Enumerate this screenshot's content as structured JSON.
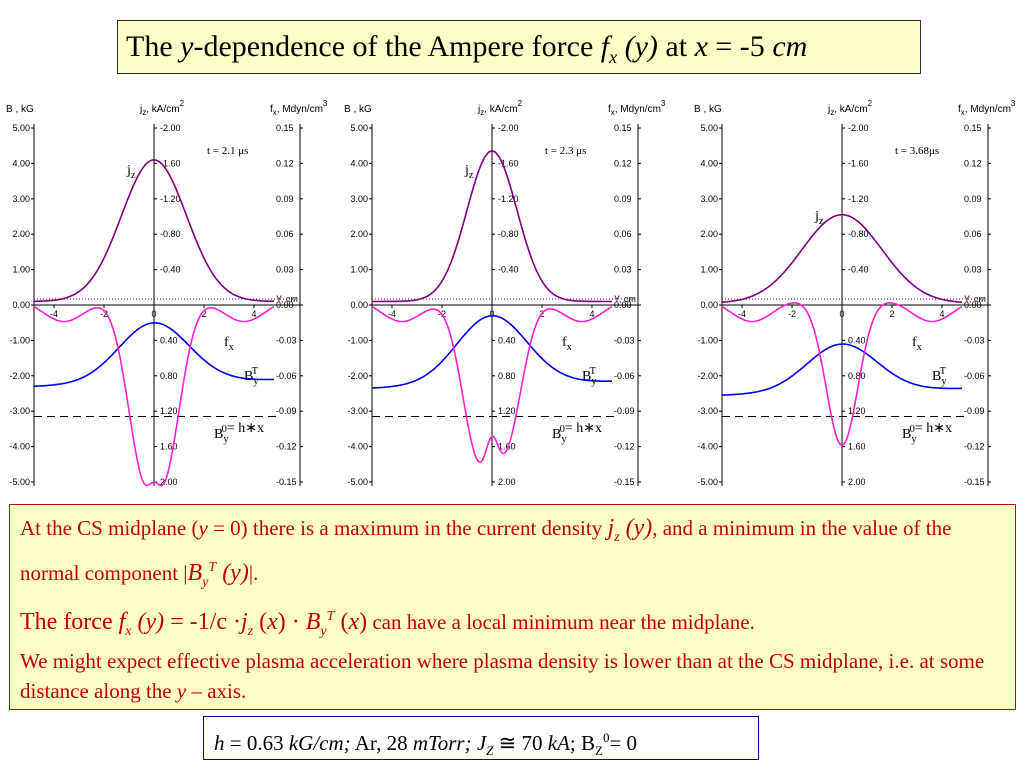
{
  "title": {
    "t1": "The ",
    "t2": "y",
    "t3": "-dependence of the Ampere force ",
    "t4": "f",
    "t5": "x",
    "t6": " (y)",
    "t7": " at ",
    "t8": "x",
    "t9": " = -5 ",
    "t10": "cm"
  },
  "panel_headers": {
    "b_axis": "B , kG",
    "j_axis_main": "j",
    "j_axis_sub": "z",
    "j_axis_unit": ", kA/cm",
    "j_axis_sup": "2",
    "f_axis_main": "f",
    "f_axis_sub": "x",
    "f_axis_unit": ", Mdyn/cm",
    "f_axis_sup": "3",
    "y_axis": "Y, cm"
  },
  "curve_labels": {
    "jz": "j",
    "jz_sub": "z",
    "fx": "f",
    "fx_sub": "x",
    "by": "B",
    "by_sub": "y",
    "by_sup": "T",
    "by0": "B",
    "by0_sub": "y",
    "by0_sup": "0",
    "by0_eq": "= h∗x"
  },
  "panels": [
    {
      "time": "t = 2.1 μs"
    },
    {
      "time": "t = 2.3 μs"
    },
    {
      "time": "t = 3.68μs"
    }
  ],
  "chart_data": {
    "type": "line",
    "left_axis": {
      "label": "B , kG",
      "ticks": [
        "5.00",
        "4.00",
        "3.00",
        "2.00",
        "1.00",
        "0.00",
        "-1.00",
        "-2.00",
        "-3.00",
        "-4.00",
        "-5.00"
      ]
    },
    "mid_axis": {
      "label": "jz, kA/cm2",
      "ticks": [
        "2.00",
        "1.60",
        "1.20",
        "0.80",
        "0.40",
        "0.40",
        "0.80",
        "1.20",
        "1.60",
        "2.00"
      ]
    },
    "right_axis": {
      "label": "fx, Mdyn/cm3",
      "ticks": [
        "0.15",
        "0.12",
        "0.09",
        "0.06",
        "0.03",
        "0.00",
        "-0.03",
        "-0.06",
        "-0.09",
        "-0.12",
        "-0.15"
      ]
    },
    "x_ticks": [
      "-4",
      "-2",
      "0",
      "2",
      "4"
    ],
    "xlim": [
      -4.8,
      4.8
    ],
    "panels": [
      {
        "time": "t = 2.1 μs",
        "jz_peak": 1.6,
        "jz_width": 1.3,
        "jz_base": 0.04,
        "fx_dips": [
          {
            "y": -0.5,
            "depth": -0.12
          },
          {
            "y": 0.5,
            "depth": -0.12
          }
        ],
        "fx_bump": {
          "y": 0,
          "height": 0.02
        },
        "by_min": -0.6,
        "by_left": -2.3,
        "by_right": -2.3,
        "by0": -3.15
      },
      {
        "time": "t = 2.3 μs",
        "jz_peak": 1.7,
        "jz_width": 1.0,
        "jz_base": 0.04,
        "fx_dips": [
          {
            "y": -0.6,
            "depth": -0.12
          },
          {
            "y": 0.6,
            "depth": -0.11
          }
        ],
        "fx_bump": {
          "y": 0,
          "height": 0.03
        },
        "by_min": -0.4,
        "by_left": -2.35,
        "by_right": -2.35,
        "by0": -3.15
      },
      {
        "time": "t = 3.68μs",
        "jz_peak": 1.0,
        "jz_width": 1.6,
        "jz_base": 0.02,
        "fx_dips": [
          {
            "y": 0,
            "depth": -0.125
          }
        ],
        "fx_bump": null,
        "by_min": -1.2,
        "by_left": -2.55,
        "by_right": -2.55,
        "by0": -3.15
      }
    ],
    "colors": {
      "jz": "#800080",
      "fx": "#ff20d0",
      "by": "#0000ee",
      "by0": "#000000",
      "zero": "#800080"
    }
  },
  "text_box": {
    "l1a": "At the CS midplane (",
    "l1b": "y",
    "l1c": " = 0) there is a maximum in the current density ",
    "l1d": "j",
    "l1e": "z",
    "l1f": " (y)",
    "l1g": ", and a minimum in the value of the normal component |",
    "l1h": "B",
    "l1i": "y",
    "l1j": "T",
    "l1k": " (y)",
    "l1l": "|.",
    "l2a": "The force ",
    "l2b": "f",
    "l2c": "x",
    "l2d": " (y)",
    "l2e": " = -1/c ·",
    "l2f": "j",
    "l2g": "z",
    "l2h": " (",
    "l2i": "x",
    "l2j": ") · ",
    "l2k": "B",
    "l2l": "y",
    "l2m": "T",
    "l2n": " (",
    "l2o": "x",
    "l2p": ")",
    "l2q": " can have a local minimum near the midplane.",
    "l3a": "We might expect effective plasma acceleration where plasma density is lower than at the CS midplane, i.e. at some distance along the ",
    "l3b": "y",
    "l3c": " – axis."
  },
  "params": {
    "p1": "h",
    "p2": " = 0.63 ",
    "p3": "kG/cm;",
    "p4": " Ar, 28 ",
    "p5": "mTorr; J",
    "p6": "Z",
    "p7": " ≅ 70 ",
    "p8": "kA",
    "p9": "; B",
    "p10": "Z",
    "p11": "0",
    "p12": "= 0"
  }
}
